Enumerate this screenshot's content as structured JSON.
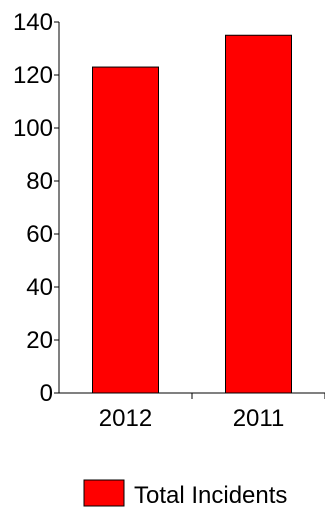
{
  "chart_data": {
    "type": "bar",
    "categories": [
      "2012",
      "2011"
    ],
    "series": [
      {
        "name": "Total Incidents",
        "values": [
          123,
          135
        ],
        "color": "#ff0000"
      }
    ],
    "yticks": [
      "0",
      "20",
      "40",
      "60",
      "80",
      "100",
      "120",
      "140"
    ],
    "ylim": [
      0,
      140
    ],
    "grid": false,
    "legend_position": "bottom"
  }
}
